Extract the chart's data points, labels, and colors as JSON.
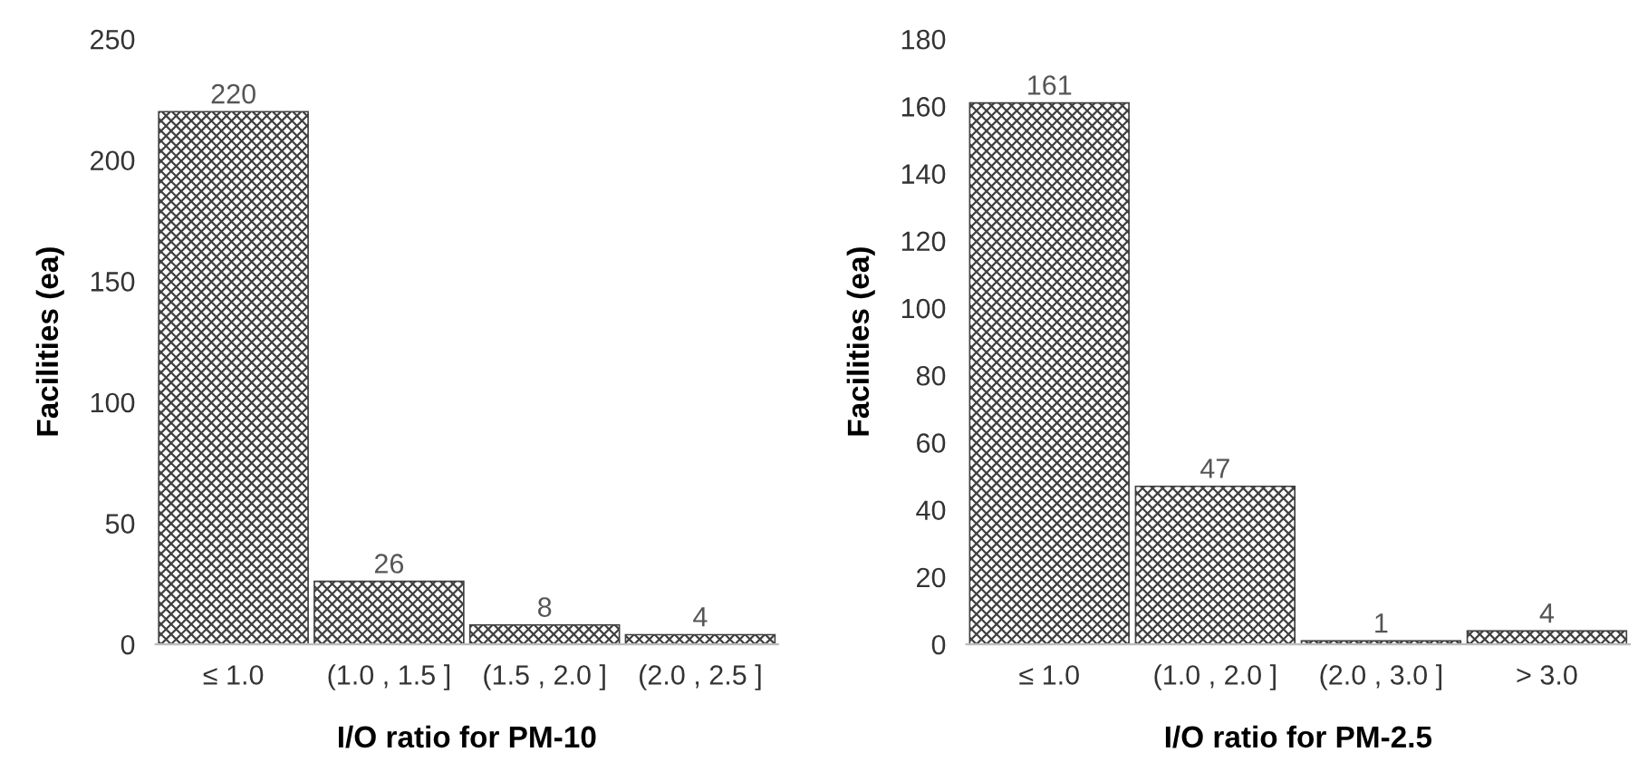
{
  "chart_data": [
    {
      "type": "bar",
      "xlabel": "I/O ratio for PM-10",
      "ylabel": "Facilities (ea)",
      "categories": [
        "≤ 1.0",
        "(1.0 , 1.5 ]",
        "(1.5 , 2.0 ]",
        "(2.0 , 2.5 ]"
      ],
      "values": [
        220,
        26,
        8,
        4
      ],
      "color": "#404040",
      "ylim": [
        0,
        250
      ],
      "yticks": [
        0,
        50,
        100,
        150,
        200,
        250
      ],
      "grid": false,
      "data_labels": true
    },
    {
      "type": "bar",
      "xlabel": "I/O ratio for PM-2.5",
      "ylabel": "Facilities (ea)",
      "categories": [
        "≤ 1.0",
        "(1.0 , 2.0 ]",
        "(2.0 , 3.0 ]",
        "> 3.0"
      ],
      "values": [
        161,
        47,
        1,
        4
      ],
      "color": "#404040",
      "ylim": [
        0,
        180
      ],
      "yticks": [
        0,
        20,
        40,
        60,
        80,
        100,
        120,
        140,
        160,
        180
      ],
      "grid": false,
      "data_labels": true
    }
  ]
}
